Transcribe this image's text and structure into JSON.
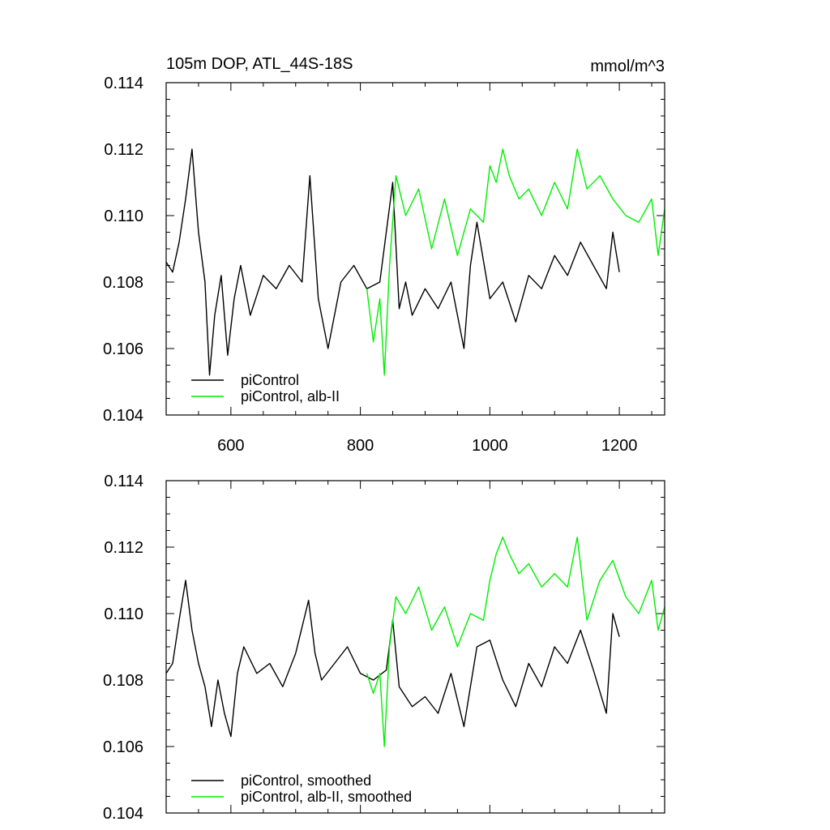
{
  "colors": {
    "piControl": "#000000",
    "albII": "#00ee00"
  },
  "chart_data": [
    {
      "type": "line",
      "title": "105m DOP, ATL_44S-18S",
      "units": "mmol/m^3",
      "xlim": [
        500,
        1270
      ],
      "ylim": [
        0.104,
        0.114
      ],
      "xticks": [
        600,
        800,
        1000,
        1200
      ],
      "xtick_labels": [
        "600",
        "800",
        "1000",
        "1200"
      ],
      "yticks": [
        0.104,
        0.106,
        0.108,
        0.11,
        0.112,
        0.114
      ],
      "ytick_labels": [
        "0.104",
        "0.106",
        "0.108",
        "0.110",
        "0.112",
        "0.114"
      ],
      "legend_position": "bottom-left",
      "series": [
        {
          "name": "piControl",
          "color_key": "piControl",
          "x": [
            500,
            510,
            520,
            530,
            540,
            550,
            560,
            567,
            575,
            585,
            595,
            605,
            615,
            630,
            650,
            670,
            690,
            710,
            722,
            735,
            750,
            770,
            790,
            810,
            830,
            850,
            860,
            870,
            880,
            900,
            920,
            940,
            960,
            970,
            980,
            1000,
            1020,
            1040,
            1060,
            1080,
            1100,
            1120,
            1140,
            1160,
            1180,
            1190,
            1200
          ],
          "values": [
            0.1086,
            0.1083,
            0.1092,
            0.1105,
            0.112,
            0.1095,
            0.108,
            0.1052,
            0.107,
            0.1082,
            0.1058,
            0.1075,
            0.1085,
            0.107,
            0.1082,
            0.1078,
            0.1085,
            0.108,
            0.1112,
            0.1075,
            0.106,
            0.108,
            0.1085,
            0.1078,
            0.108,
            0.111,
            0.1072,
            0.108,
            0.107,
            0.1078,
            0.1072,
            0.108,
            0.106,
            0.1085,
            0.1098,
            0.1075,
            0.108,
            0.1068,
            0.1082,
            0.1078,
            0.1088,
            0.1082,
            0.1092,
            0.1085,
            0.1078,
            0.1095,
            0.1083
          ]
        },
        {
          "name": "piControl, alb-II",
          "color_key": "albII",
          "x": [
            810,
            820,
            830,
            837,
            845,
            855,
            870,
            890,
            910,
            930,
            950,
            970,
            990,
            1000,
            1010,
            1020,
            1030,
            1045,
            1060,
            1080,
            1100,
            1120,
            1135,
            1150,
            1170,
            1190,
            1210,
            1230,
            1250,
            1260,
            1270
          ],
          "values": [
            0.1078,
            0.1062,
            0.1075,
            0.1052,
            0.1085,
            0.1112,
            0.11,
            0.1108,
            0.109,
            0.1105,
            0.1088,
            0.1102,
            0.1098,
            0.1115,
            0.111,
            0.112,
            0.1112,
            0.1105,
            0.1108,
            0.11,
            0.111,
            0.1102,
            0.112,
            0.1108,
            0.1112,
            0.1105,
            0.11,
            0.1098,
            0.1105,
            0.1088,
            0.1102
          ]
        }
      ]
    },
    {
      "type": "line",
      "xlim": [
        500,
        1270
      ],
      "ylim": [
        0.104,
        0.114
      ],
      "xticks": [
        600,
        800,
        1000,
        1200
      ],
      "yticks": [
        0.104,
        0.106,
        0.108,
        0.11,
        0.112,
        0.114
      ],
      "ytick_labels": [
        "0.104",
        "0.106",
        "0.108",
        "0.110",
        "0.112",
        "0.114"
      ],
      "legend_position": "bottom-left",
      "series": [
        {
          "name": "piControl, smoothed",
          "color_key": "piControl",
          "x": [
            500,
            510,
            520,
            530,
            540,
            550,
            560,
            570,
            580,
            590,
            600,
            610,
            620,
            640,
            660,
            680,
            700,
            720,
            730,
            740,
            760,
            780,
            800,
            820,
            840,
            850,
            860,
            880,
            900,
            920,
            940,
            960,
            980,
            1000,
            1020,
            1040,
            1060,
            1080,
            1100,
            1120,
            1140,
            1160,
            1180,
            1190,
            1200
          ],
          "values": [
            0.1082,
            0.1085,
            0.1098,
            0.111,
            0.1095,
            0.1085,
            0.1078,
            0.1066,
            0.108,
            0.107,
            0.1063,
            0.1082,
            0.109,
            0.1082,
            0.1085,
            0.1078,
            0.1088,
            0.1104,
            0.1088,
            0.108,
            0.1085,
            0.109,
            0.1082,
            0.108,
            0.1083,
            0.1098,
            0.1078,
            0.1072,
            0.1075,
            0.107,
            0.1082,
            0.1066,
            0.109,
            0.1092,
            0.108,
            0.1072,
            0.1085,
            0.1078,
            0.109,
            0.1085,
            0.1095,
            0.1083,
            0.107,
            0.11,
            0.1093
          ]
        },
        {
          "name": "piControl, alb-II, smoothed",
          "color_key": "albII",
          "x": [
            810,
            820,
            830,
            837,
            845,
            855,
            870,
            890,
            910,
            930,
            950,
            970,
            990,
            1000,
            1010,
            1020,
            1030,
            1045,
            1060,
            1080,
            1100,
            1120,
            1135,
            1150,
            1170,
            1190,
            1210,
            1230,
            1250,
            1260,
            1270
          ],
          "values": [
            0.1082,
            0.1076,
            0.1082,
            0.106,
            0.109,
            0.1105,
            0.11,
            0.1108,
            0.1095,
            0.1102,
            0.109,
            0.11,
            0.1098,
            0.111,
            0.1118,
            0.1123,
            0.1118,
            0.1112,
            0.1115,
            0.1108,
            0.1112,
            0.1108,
            0.1123,
            0.1098,
            0.111,
            0.1116,
            0.1105,
            0.11,
            0.111,
            0.1095,
            0.1102
          ]
        }
      ]
    }
  ]
}
